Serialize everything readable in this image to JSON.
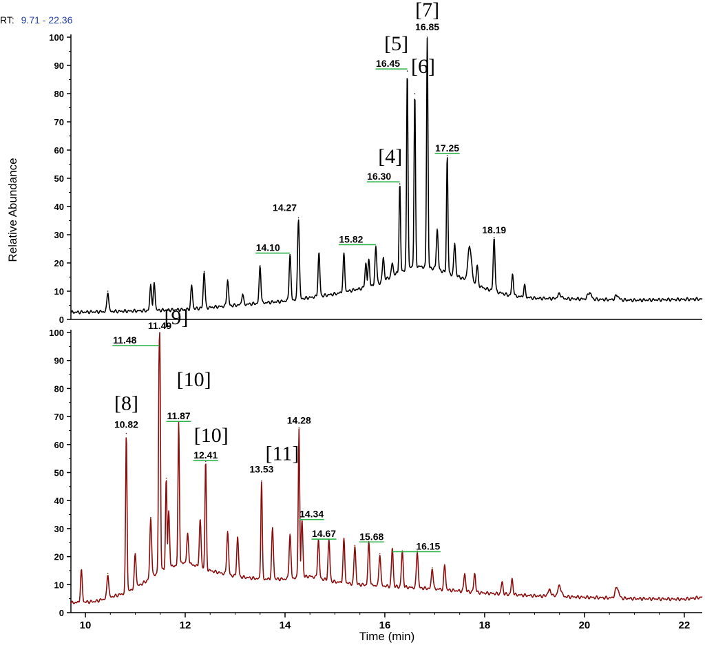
{
  "header": {
    "rt_prefix": "RT:",
    "rt_range": "9.71 - 22.36",
    "rt_color": "#1f3fa8"
  },
  "colors": {
    "top_trace": "#000000",
    "bottom_trace": "#8b0e0e",
    "peak_marker": "#2db34a"
  },
  "chart_data": [
    {
      "type": "line",
      "panel": "top",
      "xlabel": "",
      "ylabel": "Relative Abundance",
      "xlim": [
        9.71,
        22.36
      ],
      "ylim": [
        0,
        100
      ],
      "yticks": [
        "0",
        "10",
        "20",
        "30",
        "40",
        "50",
        "60",
        "70",
        "80",
        "90",
        "100"
      ],
      "baseline": [
        [
          9.71,
          2.5
        ],
        [
          11,
          3
        ],
        [
          12,
          3.5
        ],
        [
          13,
          5
        ],
        [
          14,
          6.5
        ],
        [
          15,
          9
        ],
        [
          15.8,
          12
        ],
        [
          16.2,
          16
        ],
        [
          16.6,
          19
        ],
        [
          17.0,
          18
        ],
        [
          17.5,
          15
        ],
        [
          18.0,
          11
        ],
        [
          18.5,
          8.5
        ],
        [
          19.0,
          7.5
        ],
        [
          20.0,
          7.2
        ],
        [
          21.0,
          6.8
        ],
        [
          22.36,
          7.2
        ]
      ],
      "peaks": [
        {
          "rt": 10.45,
          "abundance": 10
        },
        {
          "rt": 11.31,
          "abundance": 12.5
        },
        {
          "rt": 11.38,
          "abundance": 13
        },
        {
          "rt": 12.13,
          "abundance": 12
        },
        {
          "rt": 12.38,
          "abundance": 17
        },
        {
          "rt": 12.85,
          "abundance": 14
        },
        {
          "rt": 13.15,
          "abundance": 9
        },
        {
          "rt": 13.5,
          "abundance": 19
        },
        {
          "rt": 14.1,
          "abundance": 23
        },
        {
          "rt": 14.27,
          "abundance": 36
        },
        {
          "rt": 14.68,
          "abundance": 23.5
        },
        {
          "rt": 15.18,
          "abundance": 23
        },
        {
          "rt": 15.62,
          "abundance": 20
        },
        {
          "rt": 15.68,
          "abundance": 21
        },
        {
          "rt": 15.82,
          "abundance": 26
        },
        {
          "rt": 15.97,
          "abundance": 22
        },
        {
          "rt": 16.15,
          "abundance": 20
        },
        {
          "rt": 16.3,
          "abundance": 48
        },
        {
          "rt": 16.45,
          "abundance": 88
        },
        {
          "rt": 16.6,
          "abundance": 80
        },
        {
          "rt": 16.85,
          "abundance": 100
        },
        {
          "rt": 17.05,
          "abundance": 32
        },
        {
          "rt": 17.25,
          "abundance": 58
        },
        {
          "rt": 17.4,
          "abundance": 27
        },
        {
          "rt": 17.7,
          "abundance": 26
        },
        {
          "rt": 17.85,
          "abundance": 19
        },
        {
          "rt": 18.19,
          "abundance": 29
        },
        {
          "rt": 18.56,
          "abundance": 16
        },
        {
          "rt": 18.8,
          "abundance": 12
        },
        {
          "rt": 19.5,
          "abundance": 9
        },
        {
          "rt": 20.1,
          "abundance": 9.5
        },
        {
          "rt": 20.65,
          "abundance": 8.5
        }
      ],
      "labels": [
        {
          "text": "14.10",
          "rt": 14.1,
          "abundance": 23,
          "marker": true
        },
        {
          "text": "14.27",
          "rt": 14.27,
          "abundance": 36,
          "marker": false
        },
        {
          "text": "15.82",
          "rt": 15.82,
          "abundance": 26,
          "marker": true
        },
        {
          "text": "16.30",
          "rt": 16.3,
          "abundance": 48,
          "marker": true
        },
        {
          "text": "16.45",
          "rt": 16.45,
          "abundance": 88,
          "marker": true
        },
        {
          "text": "16.85",
          "rt": 16.85,
          "abundance": 100,
          "marker": false
        },
        {
          "text": "17.25",
          "rt": 17.25,
          "abundance": 58,
          "marker": true
        },
        {
          "text": "18.19",
          "rt": 18.19,
          "abundance": 29,
          "marker": false
        }
      ],
      "compounds": [
        {
          "text": "[4]",
          "rt": 16.3
        },
        {
          "text": "[5]",
          "rt": 16.45
        },
        {
          "text": "[6]",
          "rt": 16.6
        },
        {
          "text": "[7]",
          "rt": 16.85
        }
      ]
    },
    {
      "type": "line",
      "panel": "bottom",
      "xlabel": "Time (min)",
      "ylabel": "",
      "xlim": [
        9.71,
        22.36
      ],
      "ylim": [
        0,
        100
      ],
      "yticks": [
        "0",
        "10",
        "20",
        "30",
        "40",
        "50",
        "60",
        "70",
        "80",
        "90",
        "100"
      ],
      "xticks": [
        "10",
        "12",
        "14",
        "16",
        "18",
        "20",
        "22"
      ],
      "baseline": [
        [
          9.71,
          3.5
        ],
        [
          10.2,
          4
        ],
        [
          10.8,
          7
        ],
        [
          11.2,
          11
        ],
        [
          11.5,
          15
        ],
        [
          12.0,
          18
        ],
        [
          12.5,
          15
        ],
        [
          13.0,
          13
        ],
        [
          13.5,
          12
        ],
        [
          14.0,
          12
        ],
        [
          14.5,
          13
        ],
        [
          15.0,
          11
        ],
        [
          15.5,
          10
        ],
        [
          16.0,
          9.5
        ],
        [
          16.5,
          9
        ],
        [
          17.0,
          8.5
        ],
        [
          18.0,
          7
        ],
        [
          19.0,
          6
        ],
        [
          20.0,
          5.5
        ],
        [
          21.0,
          5
        ],
        [
          22.0,
          4.8
        ],
        [
          22.36,
          5.5
        ]
      ],
      "peaks": [
        {
          "rt": 9.92,
          "abundance": 15
        },
        {
          "rt": 10.45,
          "abundance": 14
        },
        {
          "rt": 10.82,
          "abundance": 64
        },
        {
          "rt": 11.0,
          "abundance": 21
        },
        {
          "rt": 11.31,
          "abundance": 34
        },
        {
          "rt": 11.48,
          "abundance": 97
        },
        {
          "rt": 11.49,
          "abundance": 100
        },
        {
          "rt": 11.62,
          "abundance": 48
        },
        {
          "rt": 11.67,
          "abundance": 36
        },
        {
          "rt": 11.87,
          "abundance": 68
        },
        {
          "rt": 12.05,
          "abundance": 28
        },
        {
          "rt": 12.3,
          "abundance": 33
        },
        {
          "rt": 12.41,
          "abundance": 54
        },
        {
          "rt": 12.85,
          "abundance": 29
        },
        {
          "rt": 13.05,
          "abundance": 27
        },
        {
          "rt": 13.53,
          "abundance": 47
        },
        {
          "rt": 13.75,
          "abundance": 30
        },
        {
          "rt": 14.1,
          "abundance": 28
        },
        {
          "rt": 14.28,
          "abundance": 66
        },
        {
          "rt": 14.34,
          "abundance": 33
        },
        {
          "rt": 14.67,
          "abundance": 26
        },
        {
          "rt": 14.88,
          "abundance": 26
        },
        {
          "rt": 15.18,
          "abundance": 26
        },
        {
          "rt": 15.4,
          "abundance": 24
        },
        {
          "rt": 15.68,
          "abundance": 25
        },
        {
          "rt": 15.9,
          "abundance": 21
        },
        {
          "rt": 16.15,
          "abundance": 23
        },
        {
          "rt": 16.35,
          "abundance": 22
        },
        {
          "rt": 16.65,
          "abundance": 22
        },
        {
          "rt": 16.95,
          "abundance": 16
        },
        {
          "rt": 17.2,
          "abundance": 17
        },
        {
          "rt": 17.6,
          "abundance": 14
        },
        {
          "rt": 17.8,
          "abundance": 14
        },
        {
          "rt": 18.35,
          "abundance": 11
        },
        {
          "rt": 18.55,
          "abundance": 12
        },
        {
          "rt": 19.3,
          "abundance": 8
        },
        {
          "rt": 19.5,
          "abundance": 9.5
        },
        {
          "rt": 20.65,
          "abundance": 9
        }
      ],
      "labels": [
        {
          "text": "10.82",
          "rt": 10.82,
          "abundance": 64,
          "marker": false
        },
        {
          "text": "11.48",
          "rt": 11.48,
          "abundance": 97,
          "marker": true
        },
        {
          "text": "11.49",
          "rt": 11.49,
          "abundance": 100,
          "marker": false
        },
        {
          "text": "11.87",
          "rt": 11.87,
          "abundance": 68,
          "marker": true
        },
        {
          "text": "12.41",
          "rt": 12.41,
          "abundance": 54,
          "marker": true
        },
        {
          "text": "13.53",
          "rt": 13.53,
          "abundance": 47,
          "marker": false
        },
        {
          "text": "14.28",
          "rt": 14.28,
          "abundance": 66,
          "marker": false
        },
        {
          "text": "14.34",
          "rt": 14.34,
          "abundance": 33,
          "marker": true
        },
        {
          "text": "14.67",
          "rt": 14.67,
          "abundance": 26,
          "marker": true
        },
        {
          "text": "15.68",
          "rt": 15.68,
          "abundance": 25,
          "marker": true
        },
        {
          "text": "16.15",
          "rt": 16.15,
          "abundance": 23,
          "marker": true
        }
      ],
      "compounds": [
        {
          "text": "[8]",
          "rt": 10.82
        },
        {
          "text": "[9]",
          "rt": 11.49
        },
        {
          "text": "[10]",
          "rt": 11.87
        },
        {
          "text": "[10]",
          "rt": 12.41
        },
        {
          "text": "[11]",
          "rt": 13.53
        }
      ]
    }
  ]
}
